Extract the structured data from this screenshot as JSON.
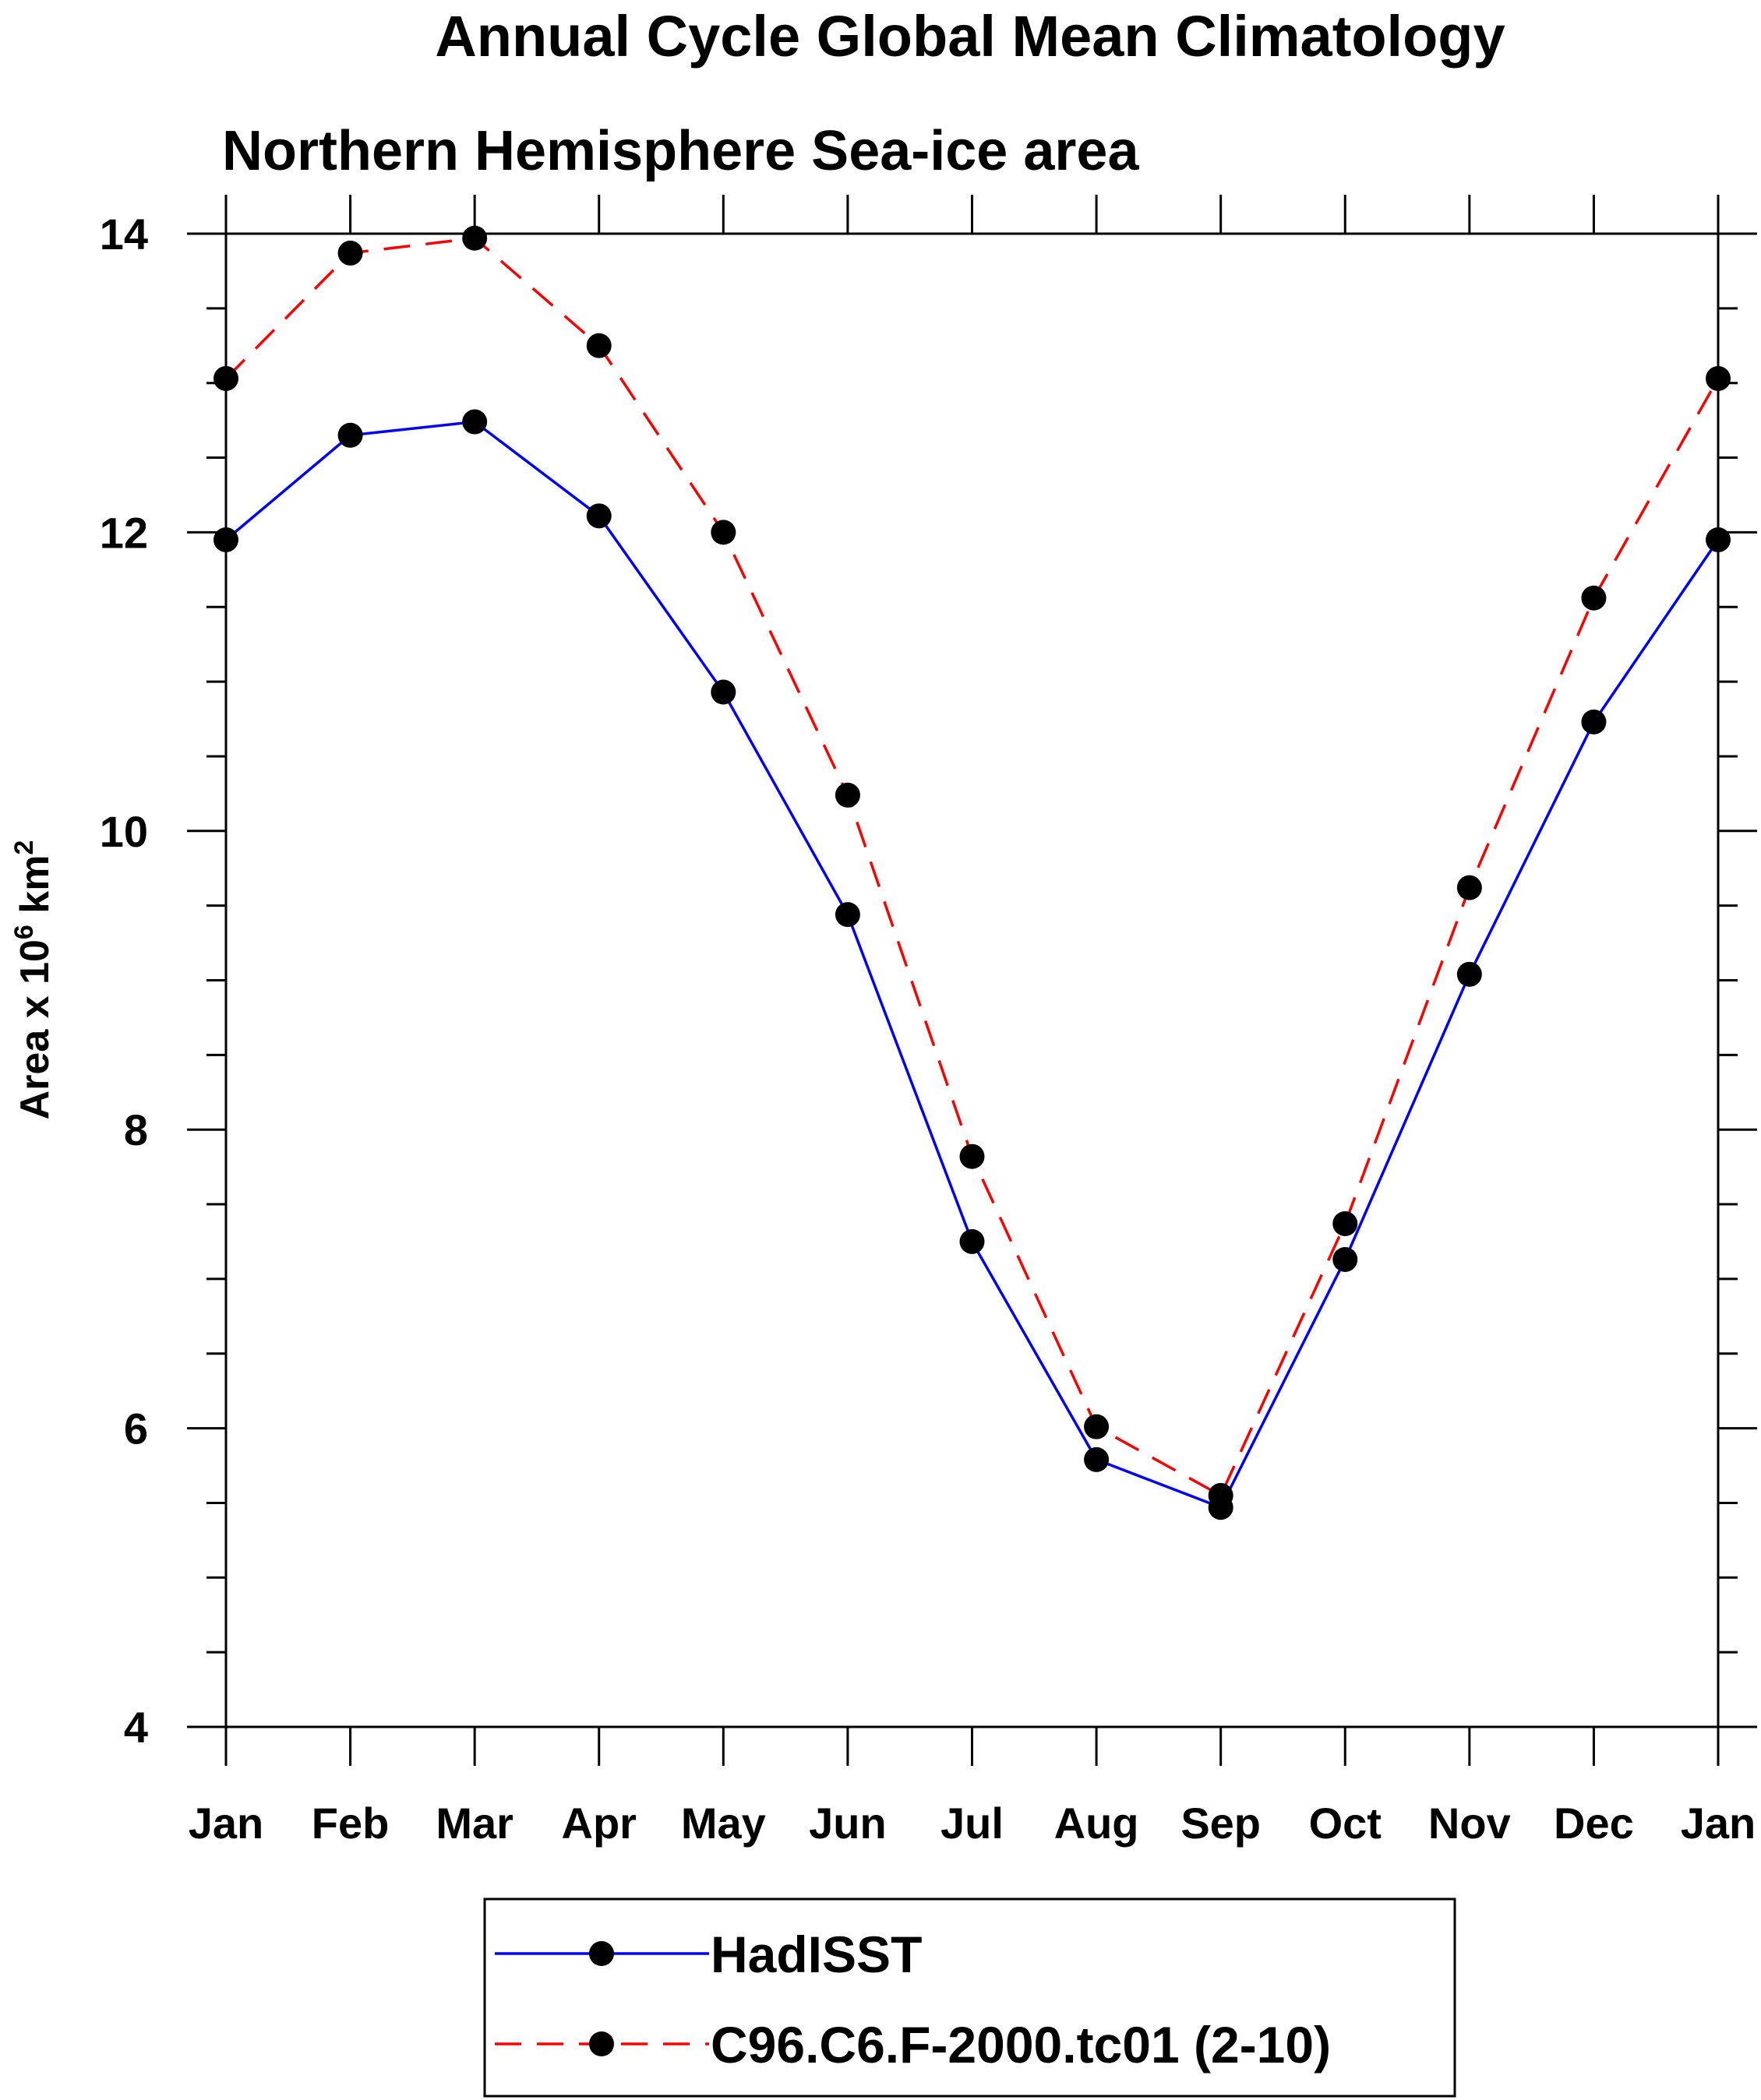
{
  "chart_data": {
    "type": "line",
    "title": "Annual Cycle Global Mean Climatology",
    "subtitle": "Northern Hemisphere Sea-ice area",
    "ylabel": {
      "main": "Area x 10",
      "sup1": "6",
      "unit": " km",
      "sup2": "2"
    },
    "xlabel": "",
    "categories": [
      "Jan",
      "Feb",
      "Mar",
      "Apr",
      "May",
      "Jun",
      "Jul",
      "Aug",
      "Sep",
      "Oct",
      "Nov",
      "Dec",
      "Jan"
    ],
    "ylim": [
      4,
      14
    ],
    "yticks": [
      4,
      6,
      8,
      10,
      12,
      14
    ],
    "yminor_step": 0.5,
    "grid": false,
    "legend_position": "bottom-center",
    "series": [
      {
        "name": "HadISST",
        "color": "#0000ff",
        "line_style": "solid",
        "marker": "filled-circle",
        "values": [
          11.95,
          12.65,
          12.74,
          12.11,
          10.93,
          9.44,
          7.25,
          5.79,
          5.47,
          7.13,
          9.04,
          10.73,
          11.95
        ]
      },
      {
        "name": "C96.C6.F-2000.tc01 (2-10)",
        "color": "#ff0000",
        "line_style": "dashed",
        "marker": "filled-circle",
        "values": [
          13.03,
          13.87,
          13.97,
          13.25,
          12.0,
          10.24,
          7.82,
          6.01,
          5.55,
          7.37,
          9.62,
          11.56,
          13.03
        ]
      }
    ]
  }
}
